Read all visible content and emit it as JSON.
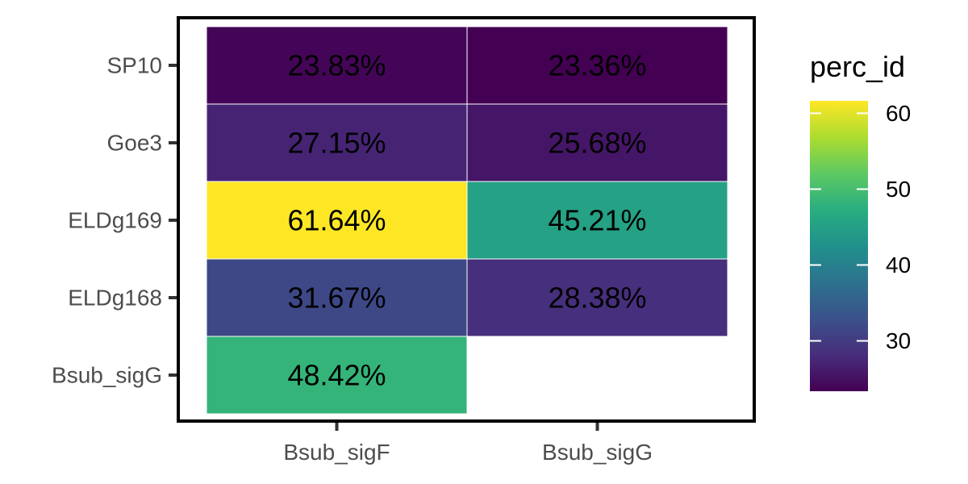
{
  "chart_data": {
    "type": "heatmap",
    "x_categories": [
      "Bsub_sigF",
      "Bsub_sigG"
    ],
    "y_categories": [
      "SP10",
      "Goe3",
      "ELDg169",
      "ELDg168",
      "Bsub_sigG"
    ],
    "cells": [
      {
        "x": "Bsub_sigF",
        "y": "SP10",
        "value": 23.83,
        "label": "23.83%"
      },
      {
        "x": "Bsub_sigG",
        "y": "SP10",
        "value": 23.36,
        "label": "23.36%"
      },
      {
        "x": "Bsub_sigF",
        "y": "Goe3",
        "value": 27.15,
        "label": "27.15%"
      },
      {
        "x": "Bsub_sigG",
        "y": "Goe3",
        "value": 25.68,
        "label": "25.68%"
      },
      {
        "x": "Bsub_sigF",
        "y": "ELDg169",
        "value": 61.64,
        "label": "61.64%"
      },
      {
        "x": "Bsub_sigG",
        "y": "ELDg169",
        "value": 45.21,
        "label": "45.21%"
      },
      {
        "x": "Bsub_sigF",
        "y": "ELDg168",
        "value": 31.67,
        "label": "31.67%"
      },
      {
        "x": "Bsub_sigG",
        "y": "ELDg168",
        "value": 28.38,
        "label": "28.38%"
      },
      {
        "x": "Bsub_sigF",
        "y": "Bsub_sigG",
        "value": 48.42,
        "label": "48.42%"
      }
    ],
    "legend": {
      "title": "perc_id",
      "ticks": [
        30,
        40,
        50,
        60
      ],
      "range": [
        23.36,
        61.64
      ],
      "placement": "right",
      "colormap": "viridis"
    },
    "grid": false
  }
}
